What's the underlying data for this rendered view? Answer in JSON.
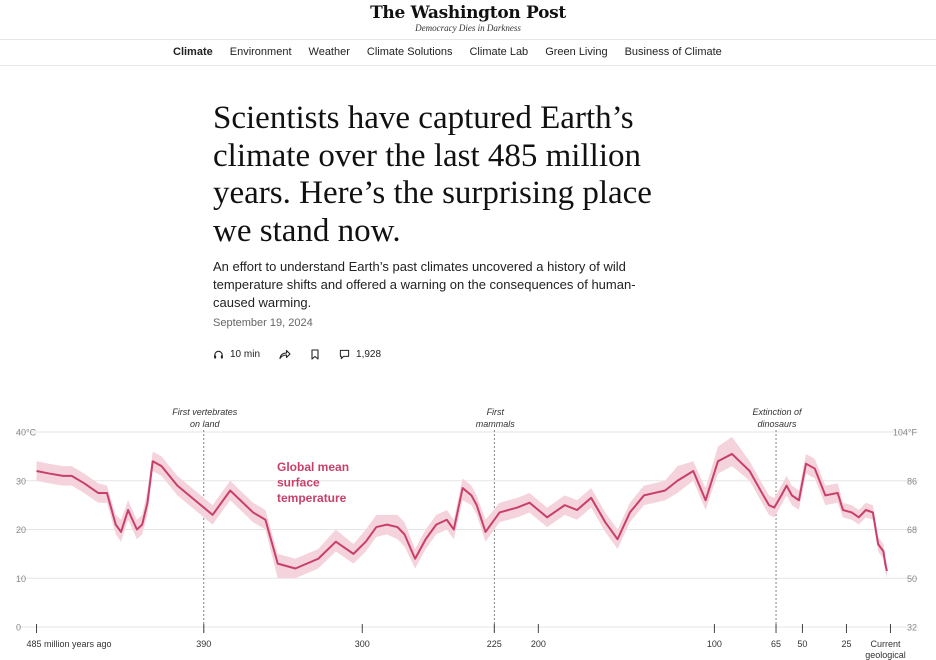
{
  "masthead": {
    "logo": "The Washington Post",
    "tagline": "Democracy Dies in Darkness"
  },
  "nav": {
    "items": [
      "Climate",
      "Environment",
      "Weather",
      "Climate Solutions",
      "Climate Lab",
      "Green Living",
      "Business of Climate"
    ],
    "active": "Climate"
  },
  "article": {
    "headline": "Scientists have captured Earth’s climate over the last 485 million years. Here’s the surprising place we stand now.",
    "dek": "An effort to understand Earth’s past climates uncovered a history of wild temperature shifts and offered a warning on the consequences of human-caused warming.",
    "date": "September 19, 2024",
    "listen_time": "10 min",
    "comment_count": "1,928"
  },
  "icons": {
    "listen": "headphones-icon",
    "share": "share-icon",
    "save": "bookmark-icon",
    "comments": "comment-icon"
  },
  "chart_data": {
    "type": "line",
    "title": "",
    "series": [
      {
        "name": "Global mean surface temperature",
        "x_labels_note": "",
        "x": [
          485,
          478,
          470,
          465,
          458,
          450,
          445,
          440,
          437,
          433,
          428,
          425,
          422,
          419,
          414,
          405,
          395,
          385,
          375,
          362,
          355,
          348,
          338,
          325,
          315,
          305,
          298,
          292,
          286,
          280,
          276,
          270,
          264,
          258,
          252,
          248,
          243,
          238,
          235,
          230,
          222,
          212,
          205,
          195,
          185,
          178,
          170,
          162,
          155,
          148,
          140,
          134,
          128,
          121,
          112,
          105,
          98,
          90,
          80,
          73,
          69,
          66,
          62,
          59,
          56,
          52,
          48,
          43,
          37,
          30,
          27,
          22,
          18,
          14,
          10,
          7,
          5,
          4,
          3,
          2
        ],
        "y": [
          32,
          31.5,
          31,
          31,
          29.5,
          27.5,
          27.5,
          21,
          19.5,
          24,
          20,
          21,
          25.5,
          34,
          33,
          29,
          26,
          23,
          28,
          23.5,
          22,
          13,
          12,
          14,
          17.5,
          15,
          17.5,
          20.5,
          21,
          20.5,
          19,
          14,
          18,
          21,
          22,
          20,
          28.5,
          27,
          25,
          19.5,
          23.5,
          24.5,
          25.5,
          22.5,
          25,
          24,
          26.5,
          21.5,
          18,
          23.5,
          27,
          27.5,
          28,
          30,
          32,
          26,
          34,
          35.5,
          32,
          27.5,
          25,
          24.5,
          27,
          29,
          27,
          26,
          33.5,
          32.5,
          27,
          27.5,
          24,
          23.5,
          22.5,
          24,
          23.5,
          17,
          16,
          15.5,
          13,
          11.5
        ],
        "upper": [
          34,
          33.5,
          33,
          33,
          31.5,
          29.5,
          29,
          23,
          22,
          26,
          22,
          23,
          28,
          36,
          35,
          31,
          28,
          25,
          30,
          25.5,
          24,
          15,
          14,
          16,
          20,
          17,
          20,
          23,
          23,
          23,
          21.5,
          16,
          20,
          23,
          24,
          22,
          30.5,
          29,
          27,
          22,
          25.5,
          26.5,
          27.5,
          24.5,
          27,
          26,
          28.5,
          23.5,
          20,
          25.5,
          29,
          29.5,
          30,
          33,
          34,
          28.5,
          37,
          39,
          34,
          29.5,
          27,
          26.5,
          29,
          31,
          29,
          28,
          35.5,
          34.5,
          29,
          29.5,
          25.5,
          25,
          24,
          25.5,
          25,
          18.5,
          17.5,
          17,
          14.5,
          13
        ],
        "lower": [
          30,
          29.5,
          29,
          29,
          27.5,
          25.5,
          25.5,
          19,
          17.5,
          22,
          18,
          19,
          23,
          32,
          31,
          27,
          24,
          21,
          26,
          21.5,
          20,
          10,
          10,
          12,
          15.5,
          13,
          15.5,
          18.5,
          19,
          18,
          16.5,
          12,
          16,
          19,
          20,
          18,
          26,
          25,
          23,
          17.5,
          21.5,
          22.5,
          23.5,
          20.5,
          23,
          22,
          24.5,
          19.5,
          16,
          21.5,
          25,
          25.5,
          26,
          27.5,
          30,
          24,
          31.5,
          33,
          30,
          25.5,
          23,
          22.5,
          25,
          27,
          25,
          24,
          31.5,
          30.5,
          25,
          25.5,
          22.5,
          22,
          21,
          22.5,
          22,
          15.5,
          14.5,
          14,
          11.5,
          10
        ]
      }
    ],
    "series_label": "Global mean surface temperature",
    "series_label_lines": [
      "Global mean",
      "surface",
      "temperature"
    ],
    "x_ticks": [
      {
        "value": 485,
        "label": "485 million years ago"
      },
      {
        "value": 390,
        "label": "390"
      },
      {
        "value": 300,
        "label": "300"
      },
      {
        "value": 225,
        "label": "225"
      },
      {
        "value": 200,
        "label": "200"
      },
      {
        "value": 100,
        "label": "100"
      },
      {
        "value": 65,
        "label": "65"
      },
      {
        "value": 50,
        "label": "50"
      },
      {
        "value": 25,
        "label": "25"
      },
      {
        "value": 0,
        "label": "Current geological"
      }
    ],
    "y_ticks_left": [
      "40°C",
      "30",
      "20",
      "10",
      "0"
    ],
    "y_ticks_left_values": [
      40,
      30,
      20,
      10,
      0
    ],
    "y_ticks_right": [
      "104°F",
      "86",
      "68",
      "50",
      "32"
    ],
    "y_ticks_right_values": [
      40,
      30,
      20,
      10,
      0
    ],
    "ylim": [
      0,
      40
    ],
    "xlim": [
      487,
      -2
    ],
    "grid": true,
    "annotations": [
      {
        "x": 390,
        "lines": [
          "First vertebrates",
          "on land"
        ]
      },
      {
        "x": 225,
        "lines": [
          "First",
          "mammals"
        ]
      },
      {
        "x": 65,
        "lines": [
          "Extinction of",
          "dinosaurs"
        ]
      }
    ],
    "colors": {
      "line": "#c8406a",
      "band": "#f5d3dc",
      "grid": "#e5e5e5",
      "axis_text": "#888888",
      "annotation_line": "#666666"
    }
  }
}
